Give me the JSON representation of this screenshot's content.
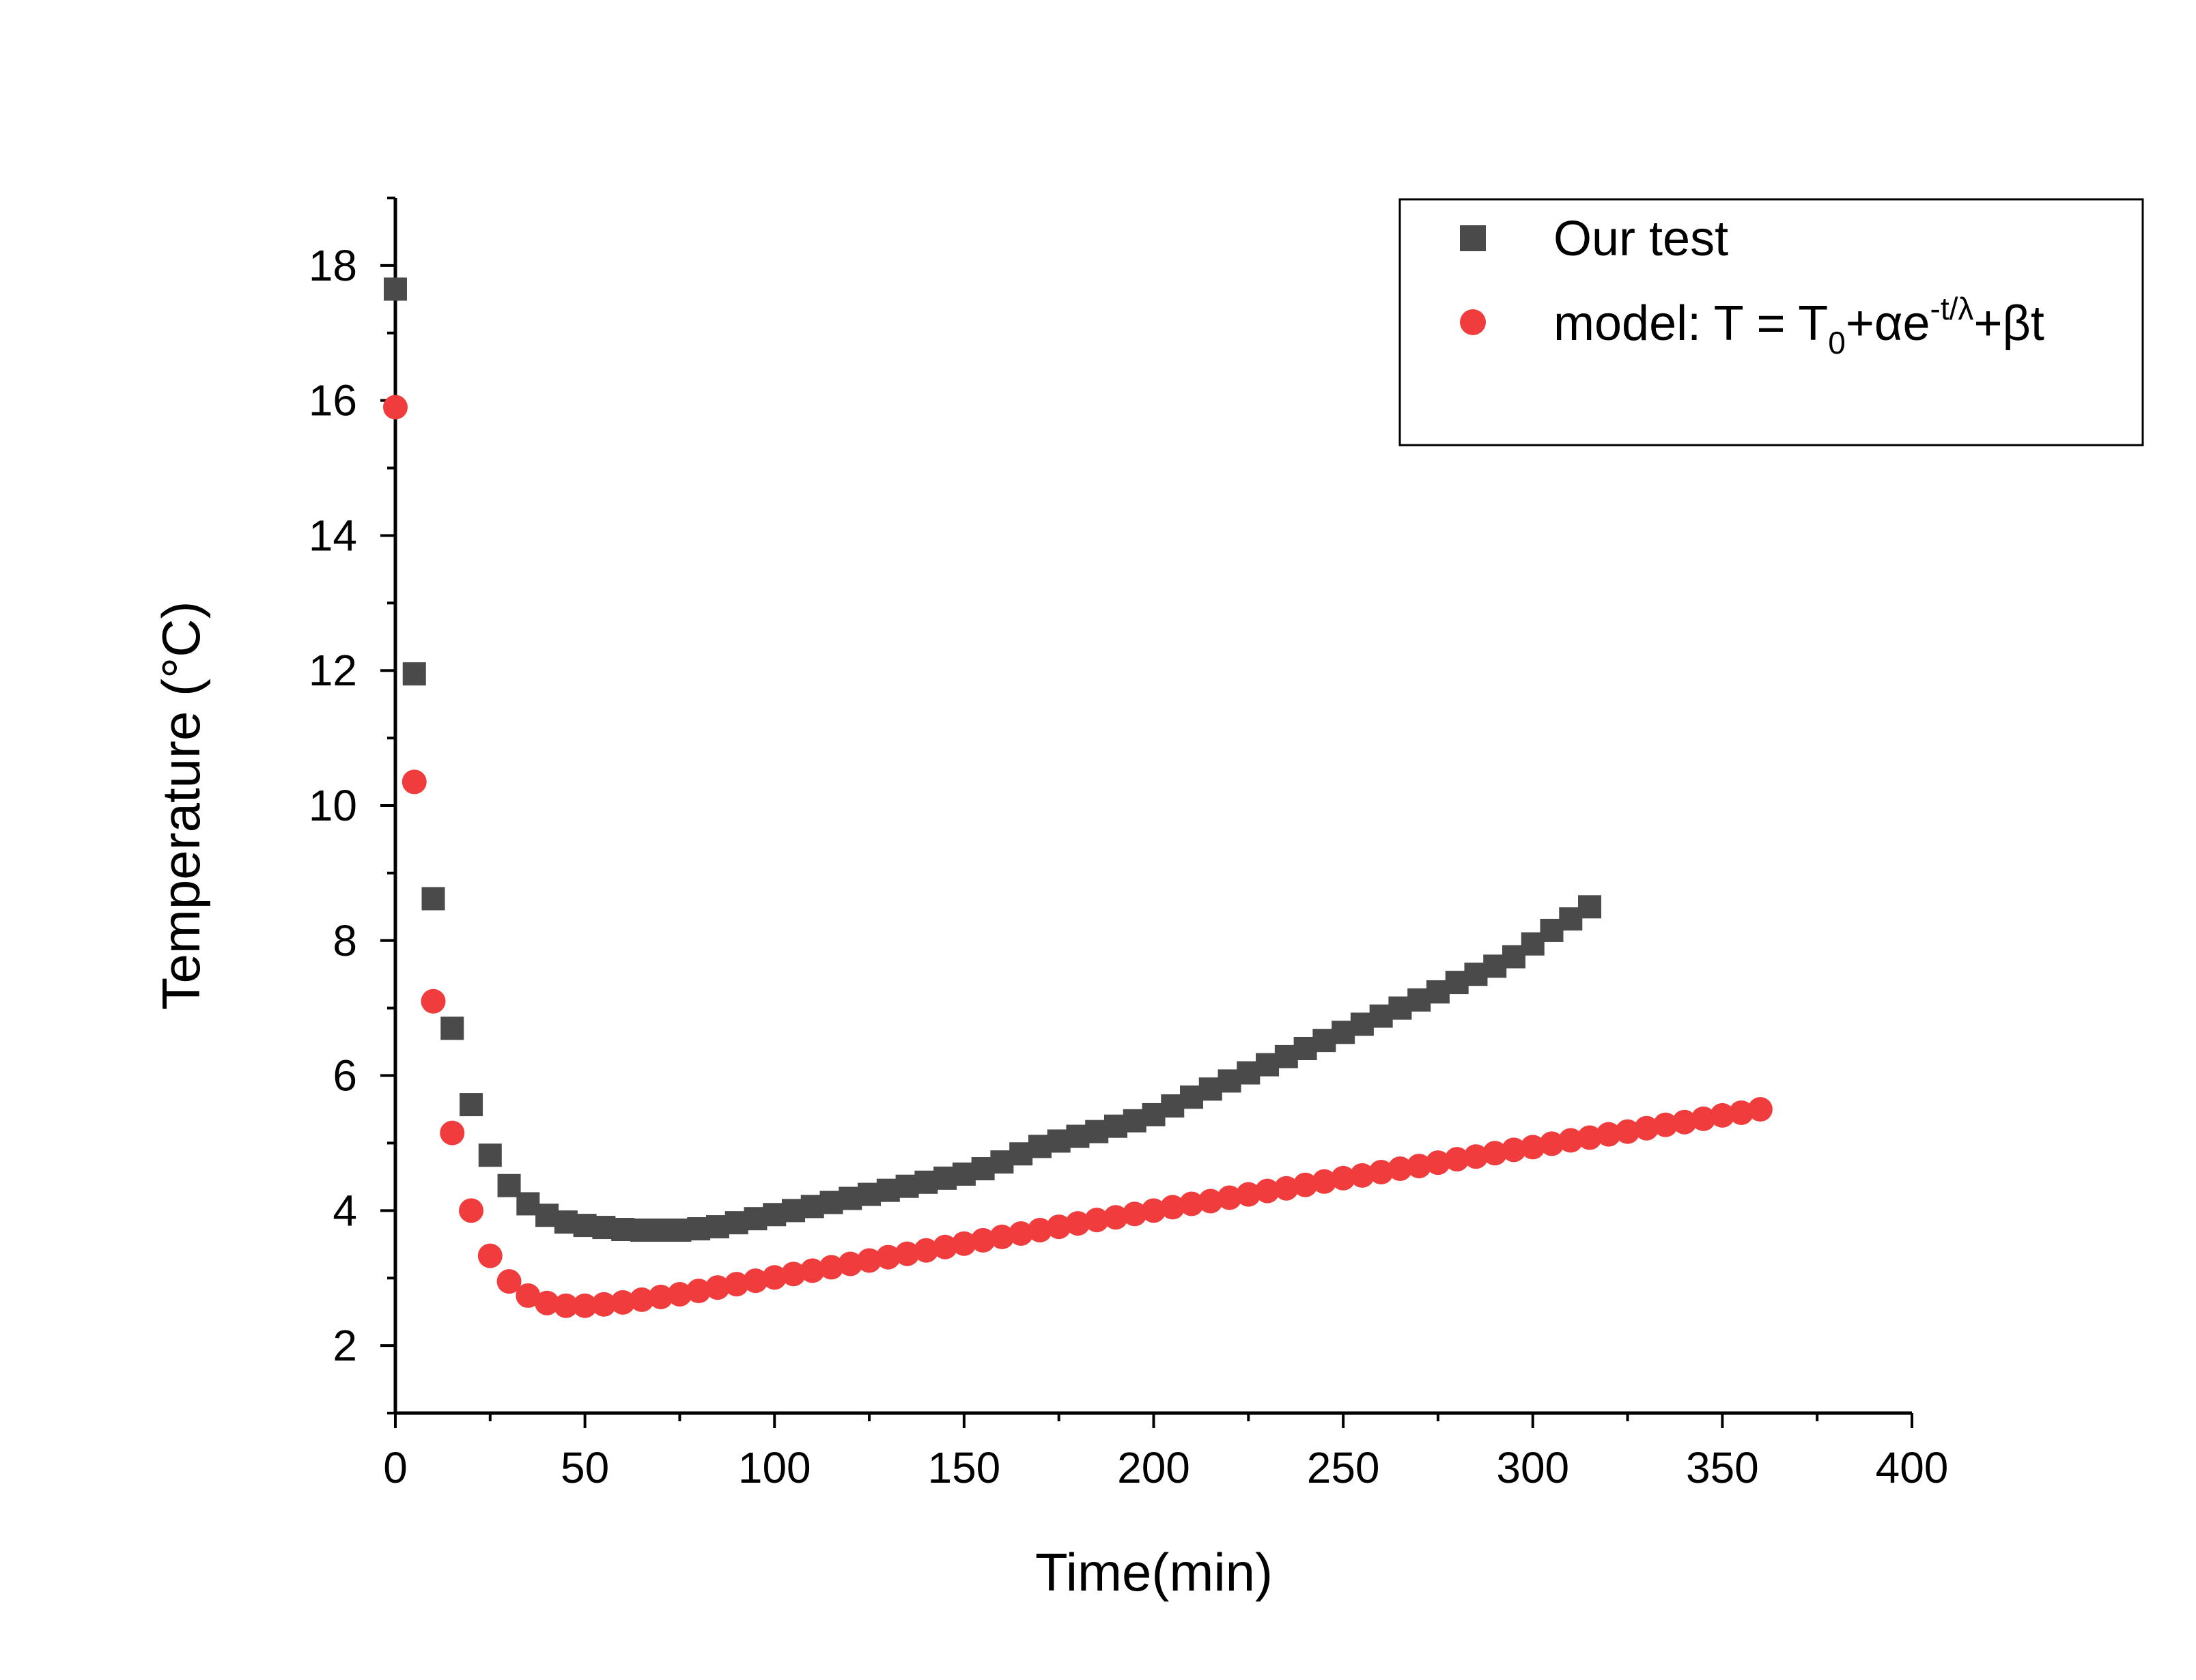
{
  "chart_data": {
    "type": "scatter",
    "xlabel": "Time(min)",
    "ylabel": "Temperature (°C)",
    "xlim": [
      0,
      400
    ],
    "ylim": [
      1,
      19
    ],
    "xticks": [
      0,
      50,
      100,
      150,
      200,
      250,
      300,
      350,
      400
    ],
    "yticks": [
      2,
      4,
      6,
      8,
      10,
      12,
      14,
      16,
      18
    ],
    "grid": false,
    "legend_position": "top-right",
    "legend": {
      "test_label": "Our test",
      "model_prefix": "model: T = T",
      "model_sub0": "0",
      "model_mid": "+αe",
      "model_sup": "-t/λ",
      "model_end": "+βt"
    },
    "colors": {
      "test": "#4a4a4a",
      "model": "#f03c3c"
    },
    "series": [
      {
        "name": "Our test",
        "marker": "square",
        "x": [
          0,
          5,
          10,
          15,
          20,
          25,
          30,
          35,
          40,
          45,
          50,
          55,
          60,
          65,
          70,
          75,
          80,
          85,
          90,
          95,
          100,
          105,
          110,
          115,
          120,
          125,
          130,
          135,
          140,
          145,
          150,
          155,
          160,
          165,
          170,
          175,
          180,
          185,
          190,
          195,
          200,
          205,
          210,
          215,
          220,
          225,
          230,
          235,
          240,
          245,
          250,
          255,
          260,
          265,
          270,
          275,
          280,
          285,
          290,
          295,
          300,
          305,
          310,
          315
        ],
        "y": [
          17.65,
          11.95,
          8.62,
          6.7,
          5.57,
          4.82,
          4.37,
          4.1,
          3.93,
          3.83,
          3.78,
          3.75,
          3.72,
          3.71,
          3.71,
          3.71,
          3.73,
          3.76,
          3.82,
          3.88,
          3.94,
          4.0,
          4.06,
          4.12,
          4.18,
          4.24,
          4.3,
          4.36,
          4.42,
          4.48,
          4.54,
          4.62,
          4.72,
          4.84,
          4.95,
          5.03,
          5.1,
          5.17,
          5.25,
          5.33,
          5.42,
          5.55,
          5.68,
          5.8,
          5.92,
          6.04,
          6.16,
          6.28,
          6.4,
          6.52,
          6.64,
          6.76,
          6.88,
          7.0,
          7.12,
          7.24,
          7.38,
          7.5,
          7.62,
          7.76,
          7.95,
          8.15,
          8.32,
          8.5
        ]
      },
      {
        "name": "model: T = T0+αe-t/λ+βt",
        "marker": "circle",
        "x": [
          0,
          5,
          10,
          15,
          20,
          25,
          30,
          35,
          40,
          45,
          50,
          55,
          60,
          65,
          70,
          75,
          80,
          85,
          90,
          95,
          100,
          105,
          110,
          115,
          120,
          125,
          130,
          135,
          140,
          145,
          150,
          155,
          160,
          165,
          170,
          175,
          180,
          185,
          190,
          195,
          200,
          205,
          210,
          215,
          220,
          225,
          230,
          235,
          240,
          245,
          250,
          255,
          260,
          265,
          270,
          275,
          280,
          285,
          290,
          295,
          300,
          305,
          310,
          315,
          320,
          325,
          330,
          335,
          340,
          345,
          350,
          355,
          360
        ],
        "y": [
          15.9,
          10.35,
          7.1,
          5.15,
          4.0,
          3.33,
          2.95,
          2.74,
          2.63,
          2.59,
          2.59,
          2.61,
          2.64,
          2.68,
          2.72,
          2.76,
          2.81,
          2.86,
          2.91,
          2.96,
          3.01,
          3.06,
          3.11,
          3.16,
          3.21,
          3.26,
          3.31,
          3.36,
          3.41,
          3.46,
          3.51,
          3.56,
          3.61,
          3.66,
          3.71,
          3.76,
          3.81,
          3.86,
          3.9,
          3.95,
          4.0,
          4.05,
          4.1,
          4.14,
          4.19,
          4.24,
          4.29,
          4.33,
          4.38,
          4.43,
          4.48,
          4.52,
          4.57,
          4.62,
          4.66,
          4.71,
          4.76,
          4.8,
          4.85,
          4.9,
          4.94,
          4.99,
          5.04,
          5.08,
          5.13,
          5.17,
          5.22,
          5.27,
          5.31,
          5.36,
          5.41,
          5.45,
          5.5
        ]
      }
    ]
  }
}
